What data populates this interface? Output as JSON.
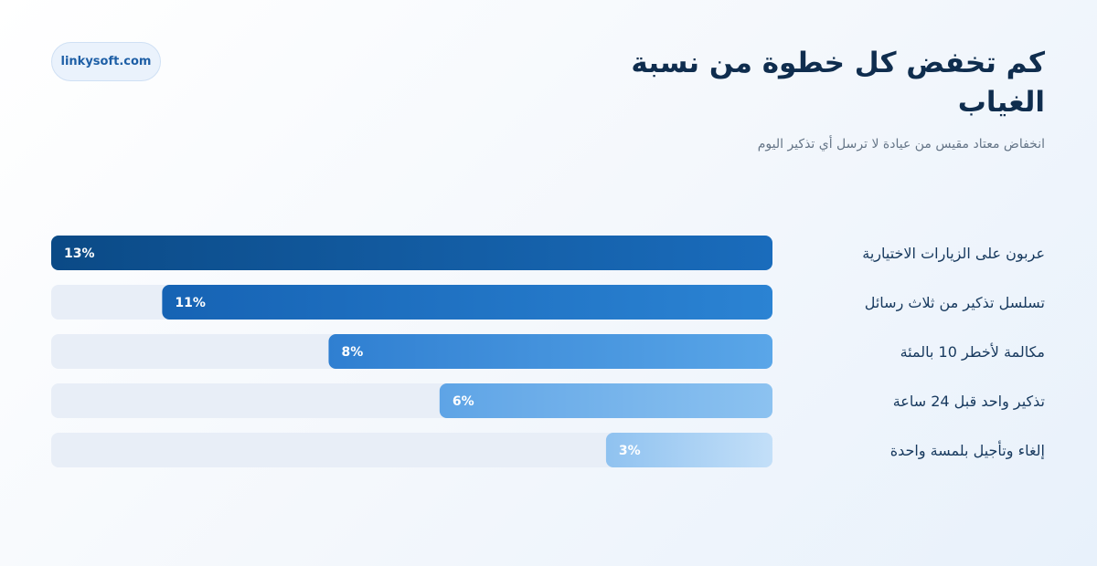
{
  "brand": {
    "site": "linkysoft.com"
  },
  "header": {
    "title": "كم تخفض كل خطوة من نسبة الغياب",
    "subtitle": "انخفاض معتاد مقيس من عيادة لا ترسل أي تذكير اليوم"
  },
  "colors": {
    "track": "#e8eef7",
    "label": "#17395e",
    "bar_text_dark": "#ffffff",
    "bars": [
      [
        "#0b4a86",
        "#1a6cbc"
      ],
      [
        "#1663b4",
        "#2b83d3"
      ],
      [
        "#2f7fd1",
        "#5aa6e8"
      ],
      [
        "#5ea4e6",
        "#8cc2f0"
      ],
      [
        "#8fc2f0",
        "#c3dff8"
      ]
    ]
  },
  "chart_data": {
    "type": "bar",
    "orientation": "horizontal",
    "categories": [
      "عربون على الزيارات الاختيارية",
      "تسلسل تذكير من ثلاث رسائل",
      "مكالمة لأخطر 10 بالمئة",
      "تذكير واحد قبل 24 ساعة",
      "إلغاء وتأجيل بلمسة واحدة"
    ],
    "values": [
      13,
      11,
      8,
      6,
      3
    ],
    "value_labels": [
      "13%",
      "11%",
      "8%",
      "6%",
      "3%"
    ],
    "xlim": [
      0,
      13
    ],
    "bar_direction": "right-to-left",
    "title": "كم تخفض كل خطوة من نسبة الغياب",
    "xlabel": "",
    "ylabel": "",
    "grid": false,
    "legend": "none"
  }
}
